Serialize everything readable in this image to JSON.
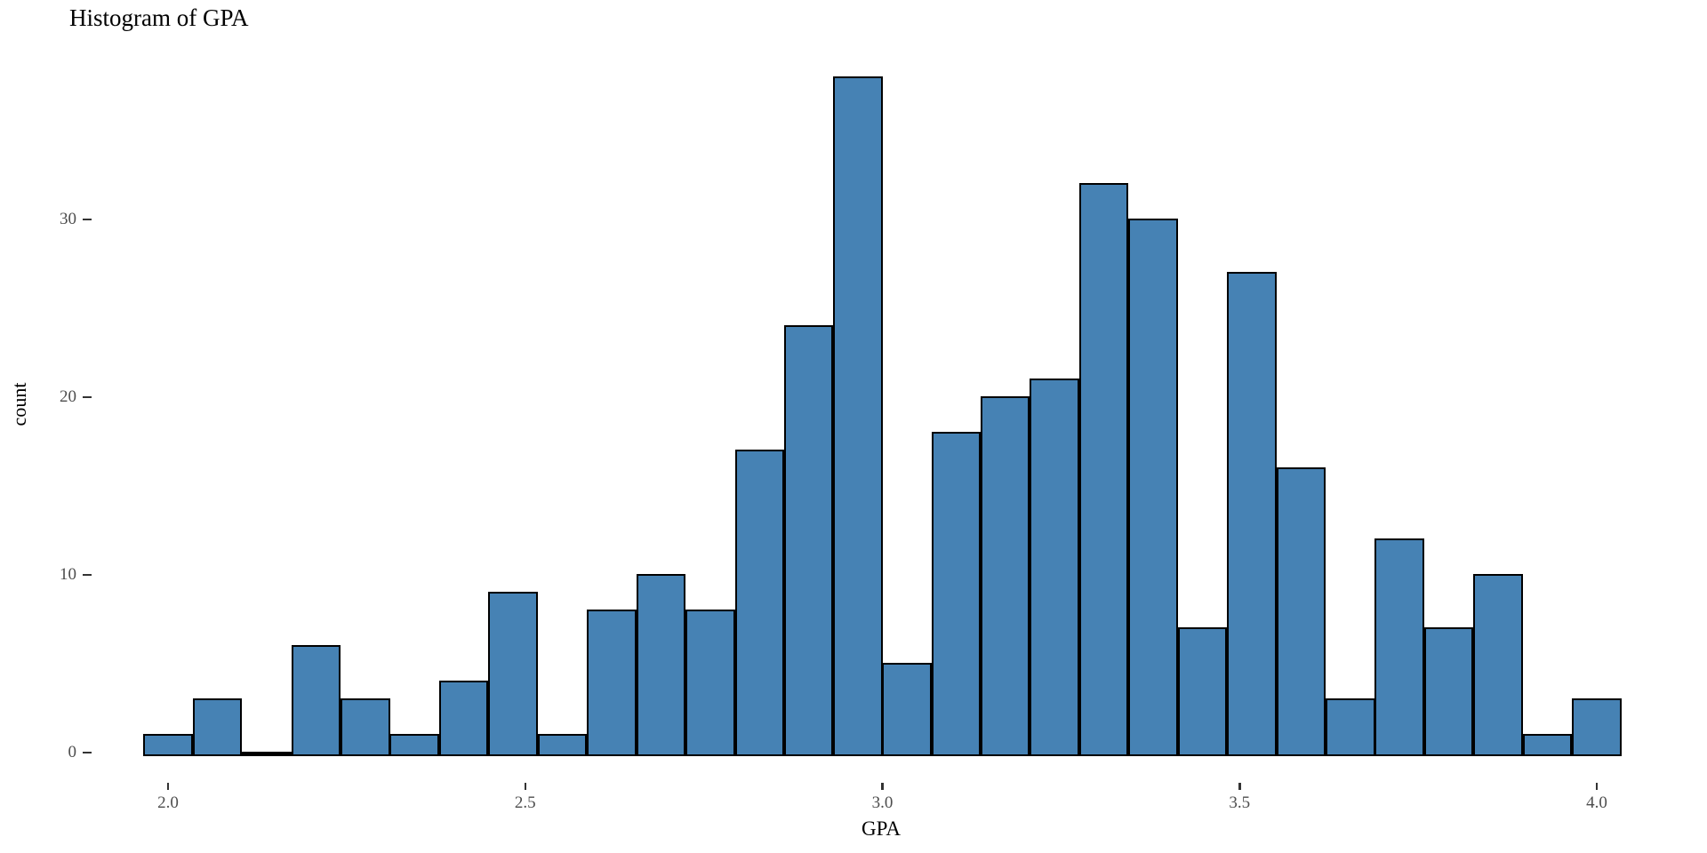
{
  "chart_data": {
    "type": "bar",
    "subtype": "histogram",
    "title": "Histogram of GPA",
    "xlabel": "GPA",
    "ylabel": "count",
    "x_tick_values": [
      2.0,
      2.5,
      3.0,
      3.5,
      4.0
    ],
    "x_tick_labels": [
      "2.0",
      "2.5",
      "3.0",
      "3.5",
      "4.0"
    ],
    "y_tick_values": [
      0,
      10,
      20,
      30
    ],
    "y_tick_labels": [
      "0",
      "10",
      "20",
      "30"
    ],
    "ylim": [
      0,
      38
    ],
    "xlim": [
      1.965,
      4.035
    ],
    "bin_width": 0.069,
    "grid": false,
    "legend": false,
    "bin_centers": [
      2.0,
      2.069,
      2.138,
      2.207,
      2.276,
      2.345,
      2.414,
      2.483,
      2.552,
      2.621,
      2.69,
      2.759,
      2.828,
      2.897,
      2.966,
      3.034,
      3.103,
      3.172,
      3.241,
      3.31,
      3.379,
      3.448,
      3.517,
      3.586,
      3.655,
      3.724,
      3.793,
      3.862,
      3.931,
      4.0
    ],
    "counts": [
      1,
      3,
      0,
      6,
      3,
      1,
      4,
      9,
      1,
      8,
      10,
      8,
      17,
      24,
      38,
      5,
      18,
      20,
      21,
      32,
      30,
      7,
      27,
      16,
      3,
      12,
      7,
      10,
      1,
      3
    ],
    "colors": {
      "bar_fill": "#4682B4",
      "bar_stroke": "#000000",
      "tick_label": "#4d4d4d",
      "tick_mark": "#333333",
      "axis_title": "#000000",
      "title": "#000000",
      "background": "#ffffff"
    }
  }
}
